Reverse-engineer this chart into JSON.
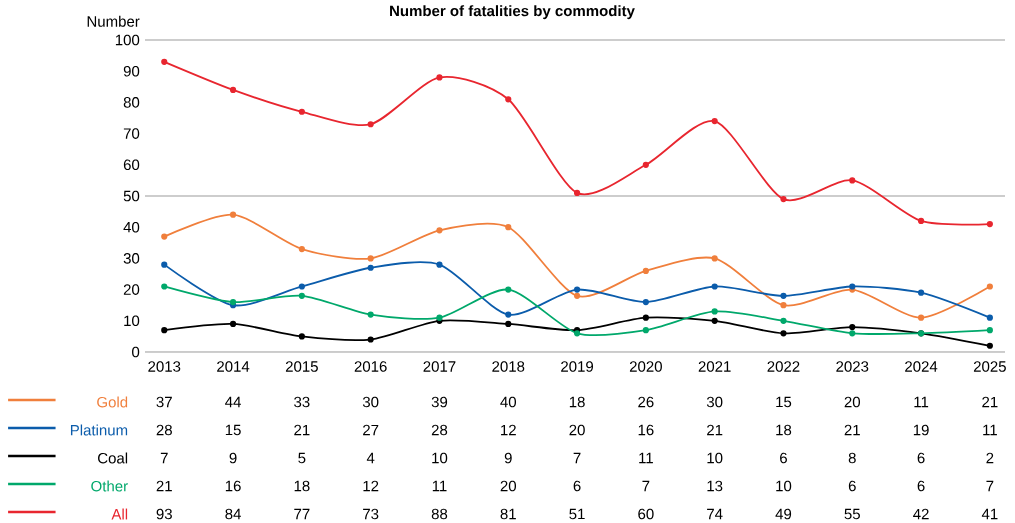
{
  "chart_data": {
    "type": "line",
    "title": "Number of fatalities by commodity",
    "ylabel": "Number",
    "categories": [
      "2013",
      "2014",
      "2015",
      "2016",
      "2017",
      "2018",
      "2019",
      "2020",
      "2021",
      "2022",
      "2023",
      "2024",
      "2025"
    ],
    "series": [
      {
        "name": "Gold",
        "color": "#f07f3c",
        "values": [
          37,
          44,
          33,
          30,
          39,
          40,
          18,
          26,
          30,
          15,
          20,
          11,
          21
        ]
      },
      {
        "name": "Platinum",
        "color": "#0b5cab",
        "values": [
          28,
          15,
          21,
          27,
          28,
          12,
          20,
          16,
          21,
          18,
          21,
          19,
          11
        ]
      },
      {
        "name": "Coal",
        "color": "#000000",
        "values": [
          7,
          9,
          5,
          4,
          10,
          9,
          7,
          11,
          10,
          6,
          8,
          6,
          2
        ]
      },
      {
        "name": "Other",
        "color": "#00a86b",
        "values": [
          21,
          16,
          18,
          12,
          11,
          20,
          6,
          7,
          13,
          10,
          6,
          6,
          7
        ]
      },
      {
        "name": "All",
        "color": "#e8262f",
        "values": [
          93,
          84,
          77,
          73,
          88,
          81,
          51,
          60,
          74,
          49,
          55,
          42,
          41
        ]
      }
    ],
    "ylim": [
      0,
      100
    ],
    "yticks": [
      0,
      10,
      20,
      30,
      40,
      50,
      60,
      70,
      80,
      90,
      100
    ],
    "ref_lines": [
      {
        "axis": "y",
        "value": 50
      }
    ],
    "data_labels": true,
    "legend": "bottom left",
    "marker": "circle"
  }
}
